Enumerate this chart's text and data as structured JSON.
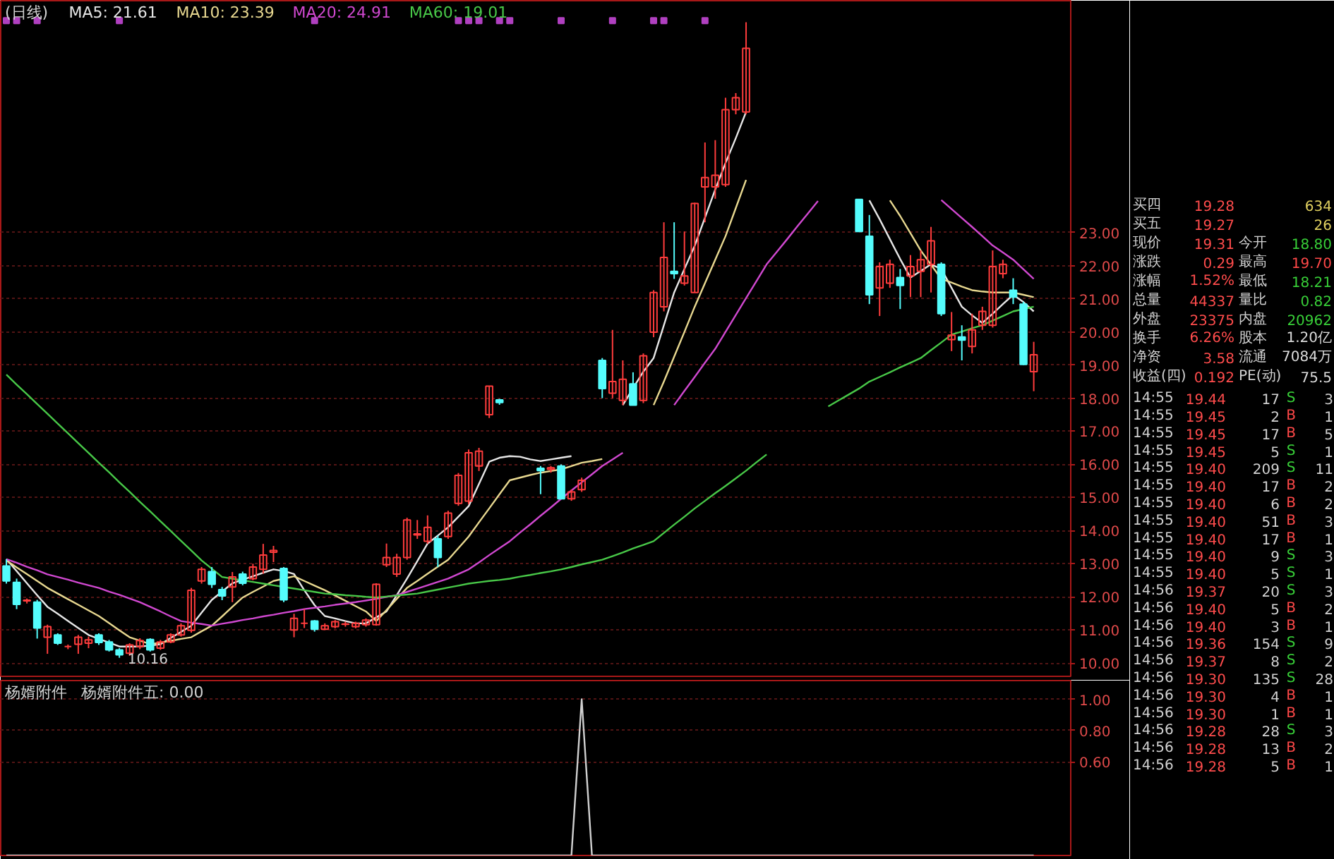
{
  "chart_data": [
    {
      "type": "candlestick",
      "title": "(日线)",
      "legend": "top left",
      "grid": "y",
      "tick_labels": "y",
      "categories": [
        null,
        null,
        null,
        null,
        null,
        null,
        null,
        null,
        null,
        null,
        null,
        null,
        null,
        null,
        null,
        null,
        null,
        null,
        null,
        null,
        null,
        null,
        null,
        null,
        null,
        null,
        null,
        null,
        null,
        null,
        null,
        null,
        null,
        null,
        null,
        null,
        null,
        null,
        null,
        null,
        null,
        null,
        null,
        null,
        null,
        null,
        null,
        null,
        null,
        null,
        null,
        null,
        null,
        null,
        null,
        null,
        null,
        null,
        null,
        null,
        null,
        null,
        null,
        null,
        null,
        null,
        null,
        null,
        null,
        null,
        null,
        null,
        null,
        null,
        null,
        null,
        null,
        null,
        null,
        null,
        null,
        null,
        null,
        null,
        null,
        null,
        null,
        null,
        null,
        null,
        null,
        null,
        null,
        null,
        null,
        null,
        null,
        null,
        null,
        null,
        null
      ],
      "ohlc": [
        [
          12.93,
          13.14,
          12.4,
          12.48
        ],
        [
          12.44,
          12.55,
          11.63,
          11.77
        ],
        [
          11.88,
          11.95,
          11.8,
          11.9
        ],
        [
          11.84,
          11.91,
          10.74,
          11.06
        ],
        [
          10.78,
          11.16,
          10.28,
          11.1
        ],
        [
          10.85,
          10.9,
          10.55,
          10.6
        ],
        [
          10.5,
          10.56,
          10.42,
          10.5
        ],
        [
          10.57,
          10.85,
          10.28,
          10.78
        ],
        [
          10.6,
          10.8,
          10.45,
          10.7
        ],
        [
          10.85,
          10.9,
          10.55,
          10.62
        ],
        [
          10.64,
          10.7,
          10.35,
          10.4
        ],
        [
          10.4,
          10.45,
          10.16,
          10.25
        ],
        [
          10.3,
          10.6,
          10.22,
          10.55
        ],
        [
          10.5,
          10.75,
          10.42,
          10.68
        ],
        [
          10.71,
          10.75,
          10.35,
          10.4
        ],
        [
          10.45,
          10.7,
          10.4,
          10.64
        ],
        [
          10.64,
          10.9,
          10.6,
          10.85
        ],
        [
          10.85,
          11.2,
          10.8,
          11.13
        ],
        [
          10.99,
          12.27,
          10.92,
          12.2
        ],
        [
          12.48,
          12.9,
          12.4,
          12.83
        ],
        [
          12.76,
          12.9,
          12.27,
          12.38
        ],
        [
          12.22,
          12.3,
          11.9,
          12.03
        ],
        [
          12.3,
          12.75,
          11.84,
          12.6
        ],
        [
          12.69,
          12.76,
          12.35,
          12.41
        ],
        [
          12.55,
          13.0,
          12.5,
          12.9
        ],
        [
          12.83,
          13.6,
          12.7,
          13.26
        ],
        [
          13.35,
          13.54,
          13.05,
          13.4
        ],
        [
          12.86,
          12.9,
          11.84,
          11.91
        ],
        [
          11.0,
          11.49,
          10.78,
          11.35
        ],
        [
          11.2,
          11.63,
          11.06,
          11.2
        ],
        [
          11.27,
          11.3,
          10.95,
          11.02
        ],
        [
          11.02,
          11.2,
          11.0,
          11.13
        ],
        [
          11.1,
          11.3,
          11.05,
          11.25
        ],
        [
          11.17,
          11.25,
          11.1,
          11.18
        ],
        [
          11.1,
          11.25,
          11.05,
          11.2
        ],
        [
          11.16,
          11.35,
          11.1,
          11.3
        ],
        [
          11.16,
          12.41,
          11.13,
          12.38
        ],
        [
          12.97,
          13.61,
          12.9,
          13.19
        ],
        [
          12.69,
          13.3,
          12.6,
          13.19
        ],
        [
          13.19,
          14.39,
          13.12,
          14.32
        ],
        [
          13.87,
          14.32,
          13.75,
          13.9
        ],
        [
          13.68,
          14.46,
          13.6,
          14.1
        ],
        [
          13.75,
          13.85,
          12.9,
          13.19
        ],
        [
          13.82,
          14.6,
          13.75,
          14.53
        ],
        [
          14.82,
          15.74,
          14.75,
          15.67
        ],
        [
          14.89,
          16.45,
          14.8,
          16.35
        ],
        [
          15.95,
          16.5,
          15.8,
          16.4
        ],
        [
          17.5,
          18.36,
          17.4,
          18.36
        ],
        [
          17.95,
          17.98,
          17.8,
          17.87
        ],
        null,
        null,
        null,
        [
          15.88,
          15.95,
          15.1,
          15.81
        ],
        [
          15.85,
          15.95,
          15.75,
          15.9
        ],
        [
          15.95,
          16.0,
          14.96,
          14.96
        ],
        [
          14.96,
          15.24,
          14.9,
          15.17
        ],
        [
          15.24,
          15.6,
          15.17,
          15.52
        ],
        null,
        [
          19.14,
          19.21,
          18.0,
          18.29
        ],
        [
          18.15,
          20.06,
          18.0,
          18.5
        ],
        [
          17.93,
          19.14,
          17.79,
          18.57
        ],
        [
          18.43,
          18.78,
          17.79,
          17.79
        ],
        [
          17.93,
          19.35,
          17.85,
          19.28
        ],
        [
          19.99,
          21.26,
          19.84,
          21.19
        ],
        [
          20.76,
          23.31,
          20.62,
          22.25
        ],
        [
          21.83,
          23.31,
          21.6,
          21.76
        ],
        [
          21.47,
          23.03,
          21.4,
          21.69
        ],
        [
          21.19,
          23.9,
          21.19,
          23.88
        ],
        [
          24.38,
          25.72,
          23.31,
          24.66
        ],
        [
          24.38,
          25.79,
          24.02,
          24.73
        ],
        [
          24.45,
          27.07,
          24.38,
          26.71
        ],
        [
          26.71,
          27.21,
          26.57,
          27.07
        ],
        [
          26.64,
          29.35,
          26.57,
          28.56
        ],
        null,
        null,
        null,
        null,
        null,
        null,
        null,
        null,
        null,
        null,
        [
          24.0,
          24.0,
          23.03,
          23.03
        ],
        [
          22.89,
          23.53,
          20.84,
          21.12
        ],
        [
          21.33,
          22.1,
          20.48,
          21.97
        ],
        [
          21.47,
          22.18,
          21.33,
          22.04
        ],
        [
          21.64,
          21.9,
          20.69,
          21.4
        ],
        [
          21.69,
          22.32,
          21.05,
          21.97
        ],
        [
          21.83,
          22.46,
          21.05,
          22.18
        ],
        [
          22.04,
          23.17,
          21.19,
          22.75
        ],
        [
          22.04,
          22.1,
          20.48,
          20.55
        ],
        [
          19.77,
          20.6,
          19.42,
          19.9
        ],
        [
          19.85,
          20.2,
          19.14,
          19.75
        ],
        [
          19.56,
          20.55,
          19.35,
          20.06
        ],
        [
          20.2,
          20.76,
          20.06,
          20.62
        ],
        [
          20.2,
          22.46,
          20.13,
          21.97
        ],
        [
          21.76,
          22.18,
          21.62,
          22.04
        ],
        [
          21.26,
          21.62,
          20.84,
          21.05
        ],
        [
          20.84,
          20.91,
          19.0,
          19.02
        ],
        [
          18.8,
          19.7,
          18.21,
          19.31
        ]
      ],
      "series": [
        {
          "type": "line",
          "name": "MA5: 21.61",
          "color": "#e6e6e6",
          "values": [
            13.14,
            12.78,
            12.41,
            12.05,
            11.7,
            11.49,
            11.27,
            11.06,
            10.85,
            10.73,
            10.62,
            10.5,
            10.5,
            10.5,
            10.53,
            10.57,
            10.76,
            10.94,
            11.13,
            11.52,
            11.91,
            12.16,
            12.41,
            12.52,
            12.62,
            12.73,
            12.83,
            12.78,
            12.69,
            12.2,
            11.75,
            11.42,
            11.35,
            11.27,
            11.2,
            11.2,
            11.38,
            11.56,
            12.05,
            12.55,
            13.08,
            13.61,
            13.85,
            14.1,
            14.42,
            14.74,
            15.41,
            16.08,
            16.2,
            16.25,
            16.23,
            16.15,
            16.1,
            16.15,
            16.2,
            16.25,
            null,
            null,
            null,
            null,
            17.79,
            18.3,
            18.8,
            19.21,
            20.2,
            21.19,
            21.9,
            22.6,
            23.45,
            24.3,
            25.1,
            25.85,
            26.64,
            null,
            null,
            null,
            null,
            null,
            null,
            null,
            null,
            null,
            null,
            null,
            23.97,
            23.4,
            22.8,
            22.2,
            21.64,
            21.84,
            22.04,
            21.9,
            21.33,
            20.76,
            20.5,
            20.27,
            20.55,
            20.84,
            21.12,
            20.9,
            20.62
          ]
        },
        {
          "type": "line",
          "name": "MA10: 23.39",
          "color": "#e8d890",
          "values": [
            13.1,
            12.89,
            12.69,
            12.48,
            12.27,
            12.1,
            11.93,
            11.76,
            11.59,
            11.42,
            11.21,
            10.99,
            10.78,
            10.68,
            10.57,
            10.62,
            10.67,
            10.73,
            10.78,
            10.96,
            11.13,
            11.41,
            11.7,
            11.98,
            12.15,
            12.31,
            12.48,
            12.55,
            12.62,
            12.48,
            12.34,
            12.2,
            12.04,
            11.88,
            11.72,
            11.56,
            11.27,
            11.6,
            11.94,
            12.27,
            12.48,
            12.7,
            12.91,
            13.12,
            13.47,
            13.82,
            14.25,
            14.67,
            15.1,
            15.52,
            15.6,
            15.68,
            15.75,
            15.8,
            15.85,
            15.95,
            16.05,
            16.1,
            16.16,
            null,
            null,
            null,
            null,
            17.79,
            18.5,
            19.25,
            20.0,
            20.76,
            21.47,
            22.18,
            22.89,
            23.74,
            24.59,
            null,
            null,
            null,
            null,
            null,
            null,
            null,
            null,
            null,
            null,
            null,
            null,
            null,
            23.97,
            23.5,
            22.98,
            22.46,
            22.03,
            21.6,
            21.49,
            21.37,
            21.26,
            21.22,
            21.19,
            21.19,
            21.19,
            21.12,
            21.05
          ]
        },
        {
          "type": "line",
          "name": "MA20: 24.91",
          "color": "#d048d0",
          "values": [
            13.14,
            13.03,
            12.91,
            12.8,
            12.68,
            12.6,
            12.52,
            12.43,
            12.35,
            12.27,
            12.16,
            12.06,
            11.95,
            11.84,
            11.7,
            11.56,
            11.41,
            11.27,
            11.22,
            11.18,
            11.13,
            11.19,
            11.24,
            11.3,
            11.35,
            11.41,
            11.46,
            11.52,
            11.57,
            11.63,
            11.67,
            11.71,
            11.76,
            11.8,
            11.84,
            11.89,
            11.94,
            12.0,
            12.05,
            12.15,
            12.25,
            12.35,
            12.45,
            12.55,
            12.69,
            12.83,
            13.04,
            13.26,
            13.47,
            13.68,
            13.94,
            14.19,
            14.45,
            14.7,
            14.96,
            15.21,
            15.46,
            15.7,
            15.95,
            16.15,
            16.35,
            null,
            null,
            null,
            null,
            17.79,
            18.22,
            18.64,
            19.07,
            19.49,
            20.0,
            20.51,
            21.02,
            21.53,
            22.04,
            22.42,
            22.8,
            23.19,
            23.57,
            23.95,
            null,
            null,
            null,
            null,
            null,
            null,
            null,
            null,
            null,
            null,
            null,
            23.98,
            23.71,
            23.44,
            23.17,
            22.89,
            22.61,
            22.4,
            22.18,
            21.89,
            21.6
          ]
        },
        {
          "type": "line",
          "name": "MA60: 19.01",
          "color": "#48c848",
          "values": [
            18.71,
            18.41,
            18.12,
            17.82,
            17.53,
            17.23,
            16.94,
            16.64,
            16.35,
            16.05,
            15.76,
            15.46,
            15.17,
            14.87,
            14.58,
            14.28,
            13.99,
            13.69,
            13.4,
            13.1,
            12.85,
            12.6,
            12.55,
            12.5,
            12.45,
            12.4,
            12.35,
            12.3,
            12.25,
            12.2,
            12.15,
            12.1,
            12.08,
            12.05,
            12.03,
            12.0,
            11.98,
            12.01,
            12.04,
            12.07,
            12.1,
            12.16,
            12.22,
            12.28,
            12.34,
            12.4,
            12.44,
            12.48,
            12.51,
            12.55,
            12.61,
            12.66,
            12.72,
            12.77,
            12.83,
            12.9,
            12.98,
            13.05,
            13.12,
            13.23,
            13.34,
            13.46,
            13.57,
            13.68,
            13.93,
            14.18,
            14.42,
            14.67,
            14.9,
            15.13,
            15.35,
            15.58,
            15.81,
            16.06,
            16.3,
            null,
            null,
            null,
            null,
            null,
            17.75,
            17.93,
            18.11,
            18.29,
            18.5,
            18.64,
            18.78,
            18.93,
            19.07,
            19.21,
            19.45,
            19.68,
            19.92,
            20.01,
            20.11,
            20.2,
            20.34,
            20.48,
            20.62,
            20.69,
            20.76
          ]
        },
        {
          "type": "scatter",
          "color": "#b040c0",
          "marker": "square",
          "values": [
            29.4,
            29.4,
            null,
            29.4,
            null,
            null,
            null,
            null,
            null,
            null,
            null,
            29.4,
            null,
            null,
            null,
            null,
            null,
            null,
            null,
            null,
            null,
            null,
            null,
            null,
            null,
            null,
            null,
            null,
            null,
            null,
            29.4,
            null,
            null,
            null,
            null,
            null,
            null,
            null,
            null,
            null,
            null,
            null,
            null,
            null,
            29.4,
            29.4,
            29.4,
            null,
            29.4,
            29.4,
            null,
            null,
            null,
            null,
            29.4,
            null,
            null,
            null,
            null,
            29.4,
            null,
            null,
            null,
            29.4,
            29.4,
            null,
            null,
            null,
            29.4,
            null,
            null,
            null,
            null,
            null,
            null,
            null,
            null,
            null,
            null,
            null,
            null,
            null,
            null,
            null,
            null,
            null,
            null,
            null,
            null,
            null,
            null,
            null,
            null,
            null,
            null,
            null,
            null,
            null,
            null,
            null,
            null
          ]
        }
      ],
      "annotations": [
        {
          "text": "10.16",
          "y": 10.16
        }
      ],
      "ylim": [
        9.6,
        30.0
      ],
      "yticks": [
        {
          "value": 10,
          "label": "10.00"
        },
        {
          "value": 11,
          "label": "11.00"
        },
        {
          "value": 12,
          "label": "12.00"
        },
        {
          "value": 13,
          "label": "13.00"
        },
        {
          "value": 14,
          "label": "14.00"
        },
        {
          "value": 15,
          "label": "15.00"
        },
        {
          "value": 16,
          "label": "16.00"
        },
        {
          "value": 17,
          "label": "17.00"
        },
        {
          "value": 18,
          "label": "18.00"
        },
        {
          "value": 19,
          "label": "19.00"
        },
        {
          "value": 20,
          "label": "20.00"
        },
        {
          "value": 21,
          "label": "21.00"
        },
        {
          "value": 22,
          "label": "22.00"
        },
        {
          "value": 23,
          "label": "23.00"
        }
      ]
    },
    {
      "type": "line",
      "title": "杨婿附件",
      "legend": "top left",
      "grid": "y",
      "tick_labels": "y",
      "categories": [
        null,
        null,
        null,
        null,
        null,
        null,
        null,
        null,
        null,
        null,
        null,
        null,
        null,
        null,
        null,
        null,
        null,
        null,
        null,
        null,
        null,
        null,
        null,
        null,
        null,
        null,
        null,
        null,
        null,
        null,
        null,
        null,
        null,
        null,
        null,
        null,
        null,
        null,
        null,
        null,
        null,
        null,
        null,
        null,
        null,
        null,
        null,
        null,
        null,
        null,
        null,
        null,
        null,
        null,
        null,
        null,
        null,
        null,
        null,
        null,
        null,
        null,
        null,
        null,
        null,
        null,
        null,
        null,
        null,
        null,
        null,
        null,
        null,
        null,
        null,
        null,
        null,
        null,
        null,
        null,
        null,
        null,
        null,
        null,
        null,
        null,
        null,
        null,
        null,
        null,
        null,
        null,
        null,
        null,
        null,
        null,
        null,
        null,
        null,
        null,
        null
      ],
      "series": [
        {
          "name": "杨婿附件五: 0.00",
          "color": "#d0d0d0",
          "values": [
            0,
            0,
            0,
            0,
            0,
            0,
            0,
            0,
            0,
            0,
            0,
            0,
            0,
            0,
            0,
            0,
            0,
            0,
            0,
            0,
            0,
            0,
            0,
            0,
            0,
            0,
            0,
            0,
            0,
            0,
            0,
            0,
            0,
            0,
            0,
            0,
            0,
            0,
            0,
            0,
            0,
            0,
            0,
            0,
            0,
            0,
            0,
            0,
            0,
            0,
            0,
            0,
            0,
            0,
            0,
            0,
            1,
            0,
            0,
            0,
            0,
            0,
            0,
            0,
            0,
            0,
            0,
            0,
            0,
            0,
            0,
            0,
            0,
            0,
            0,
            0,
            0,
            0,
            0,
            0,
            0,
            0,
            0,
            0,
            0,
            0,
            0,
            0,
            0,
            0,
            0,
            0,
            0,
            0,
            0,
            0,
            0,
            0,
            0,
            0,
            0
          ]
        }
      ],
      "ylim": [
        0,
        1.12
      ],
      "yticks": [
        {
          "value": 0.6,
          "label": "0.60"
        },
        {
          "value": 0.8,
          "label": "0.80"
        },
        {
          "value": 1,
          "label": "1.00"
        }
      ]
    },
    {
      "type": "other",
      "annotations": [
        "买四 19.28 634",
        "买五 19.27 26",
        "现价 19.31 今开 18.80",
        "涨跌 0.29 最高 19.70",
        "涨幅 1.52% 最低 18.21",
        "总量 44337 量比 0.82",
        "外盘 23375 内盘 20962",
        "换手 6.26% 股本 1.20亿",
        "净资 3.58 流通 7084万",
        "收益(四) 0.192 PE(动) 75.5",
        "14:55 19.44 17 S 3",
        "14:55 19.45 2 B 1",
        "14:55 19.45 17 B 5",
        "14:55 19.45 5 S 1",
        "14:55 19.40 209 S 11",
        "14:55 19.40 17 B 2",
        "14:55 19.40 6 B 2",
        "14:55 19.40 51 B 3",
        "14:55 19.40 17 B 1",
        "14:55 19.40 9 S 3",
        "14:55 19.40 5 S 1",
        "14:56 19.37 20 S 3",
        "14:56 19.40 5 B 2",
        "14:56 19.40 3 B 1",
        "14:56 19.36 154 S 9",
        "14:56 19.37 8 S 2",
        "14:56 19.30 135 S 28",
        "14:56 19.30 4 B 1",
        "14:56 19.30 1 B 1",
        "14:56 19.28 28 S 3",
        "14:56 19.28 13 B 2",
        "14:56 19.28 5 B 1"
      ],
      "colors": [
        "#e0d060",
        "#e0d060",
        "#38d038",
        "#ff4848",
        "#38d038",
        "#38d038",
        "#38d038",
        "#dcdcdc",
        "#dcdcdc",
        "#dcdcdc",
        "#38d038",
        "#ff4848",
        "#ff4848",
        "#38d038",
        "#38d038",
        "#ff4848",
        "#ff4848",
        "#ff4848",
        "#ff4848",
        "#38d038",
        "#38d038",
        "#38d038",
        "#ff4848",
        "#ff4848",
        "#38d038",
        "#38d038",
        "#38d038",
        "#ff4848",
        "#ff4848",
        "#38d038",
        "#ff4848",
        "#ff4848"
      ]
    }
  ]
}
